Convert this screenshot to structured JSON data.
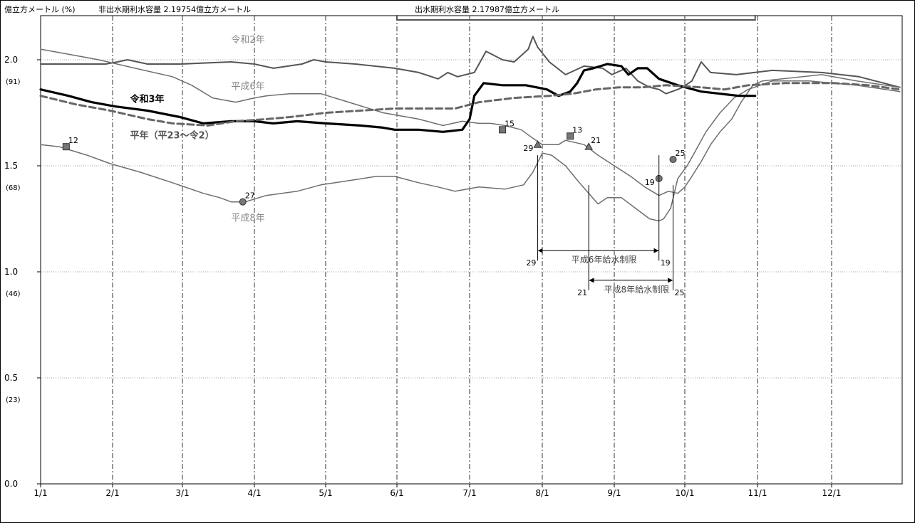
{
  "header": {
    "unit_label": "億立方メートル (%)",
    "non_flood_label": "非出水期利水容量 2.19754億立方メートル",
    "flood_label": "出水期利水容量 2.17987億立方メートル"
  },
  "chart_data": {
    "type": "line",
    "title": "",
    "xlabel": "",
    "ylabel": "億立方メートル (%)",
    "ylim": [
      0,
      2.2
    ],
    "x_ticks": [
      "1/1",
      "2/1",
      "3/1",
      "4/1",
      "5/1",
      "6/1",
      "7/1",
      "8/1",
      "9/1",
      "10/1",
      "11/1",
      "12/1"
    ],
    "y_ticks": [
      {
        "value": 0.0,
        "label": "0.0",
        "pct": ""
      },
      {
        "value": 0.5,
        "label": "0.5",
        "pct": "(23)"
      },
      {
        "value": 1.0,
        "label": "1.0",
        "pct": "(46)"
      },
      {
        "value": 1.5,
        "label": "1.5",
        "pct": "(68)"
      },
      {
        "value": 2.0,
        "label": "2.0",
        "pct": "(91)"
      }
    ],
    "grid": true,
    "series": [
      {
        "name": "令和2年",
        "color": "#555555",
        "width": 2,
        "dash": "",
        "points": [
          [
            0,
            1.98
          ],
          [
            8,
            1.98
          ],
          [
            20,
            1.98
          ],
          [
            28,
            1.98
          ],
          [
            33,
            1.99
          ],
          [
            37,
            2.0
          ],
          [
            45,
            1.98
          ],
          [
            58,
            1.98
          ],
          [
            80,
            1.99
          ],
          [
            90,
            1.98
          ],
          [
            98,
            1.96
          ],
          [
            110,
            1.98
          ],
          [
            115,
            2.0
          ],
          [
            120,
            1.99
          ],
          [
            133,
            1.98
          ],
          [
            150,
            1.96
          ],
          [
            160,
            1.94
          ],
          [
            168,
            1.91
          ],
          [
            172,
            1.94
          ],
          [
            176,
            1.92
          ],
          [
            183,
            1.94
          ],
          [
            186,
            2.0
          ],
          [
            188,
            2.04
          ],
          [
            195,
            2.0
          ],
          [
            200,
            1.99
          ],
          [
            206,
            2.05
          ],
          [
            208,
            2.11
          ],
          [
            210,
            2.06
          ],
          [
            215,
            1.99
          ],
          [
            222,
            1.93
          ],
          [
            230,
            1.97
          ],
          [
            238,
            1.96
          ],
          [
            242,
            1.93
          ],
          [
            248,
            1.96
          ],
          [
            253,
            1.9
          ],
          [
            258,
            1.87
          ],
          [
            262,
            1.86
          ],
          [
            265,
            1.84
          ],
          [
            270,
            1.86
          ],
          [
            272,
            1.87
          ],
          [
            276,
            1.9
          ],
          [
            280,
            1.99
          ],
          [
            284,
            1.94
          ],
          [
            295,
            1.93
          ],
          [
            310,
            1.95
          ],
          [
            330,
            1.94
          ],
          [
            346,
            1.92
          ],
          [
            364,
            1.87
          ]
        ]
      },
      {
        "name": "平成6年",
        "color": "#6e6e6e",
        "width": 1.5,
        "dash": "",
        "points": [
          [
            0,
            2.05
          ],
          [
            15,
            2.02
          ],
          [
            25,
            2.0
          ],
          [
            40,
            1.96
          ],
          [
            55,
            1.92
          ],
          [
            63,
            1.88
          ],
          [
            72,
            1.82
          ],
          [
            82,
            1.8
          ],
          [
            90,
            1.82
          ],
          [
            95,
            1.83
          ],
          [
            105,
            1.84
          ],
          [
            118,
            1.84
          ],
          [
            130,
            1.8
          ],
          [
            145,
            1.75
          ],
          [
            160,
            1.72
          ],
          [
            170,
            1.69
          ],
          [
            178,
            1.71
          ],
          [
            185,
            1.7
          ],
          [
            190,
            1.7
          ],
          [
            196,
            1.69
          ],
          [
            203,
            1.67
          ],
          [
            208,
            1.63
          ],
          [
            212,
            1.6
          ],
          [
            219,
            1.6
          ],
          [
            222,
            1.62
          ],
          [
            230,
            1.6
          ],
          [
            236,
            1.55
          ],
          [
            243,
            1.5
          ],
          [
            250,
            1.45
          ],
          [
            256,
            1.4
          ],
          [
            262,
            1.36
          ],
          [
            266,
            1.38
          ],
          [
            270,
            1.37
          ],
          [
            273,
            1.4
          ],
          [
            276,
            1.45
          ],
          [
            280,
            1.52
          ],
          [
            284,
            1.6
          ],
          [
            288,
            1.66
          ],
          [
            293,
            1.72
          ],
          [
            297,
            1.8
          ],
          [
            302,
            1.88
          ],
          [
            306,
            1.9
          ],
          [
            330,
            1.93
          ],
          [
            345,
            1.9
          ],
          [
            364,
            1.87
          ]
        ]
      },
      {
        "name": "平成8年",
        "color": "#6e6e6e",
        "width": 1.5,
        "dash": "",
        "points": [
          [
            0,
            1.6
          ],
          [
            8,
            1.59
          ],
          [
            20,
            1.55
          ],
          [
            30,
            1.51
          ],
          [
            42,
            1.47
          ],
          [
            55,
            1.42
          ],
          [
            68,
            1.37
          ],
          [
            75,
            1.35
          ],
          [
            80,
            1.33
          ],
          [
            86,
            1.33
          ],
          [
            95,
            1.36
          ],
          [
            108,
            1.38
          ],
          [
            118,
            1.41
          ],
          [
            130,
            1.43
          ],
          [
            142,
            1.45
          ],
          [
            150,
            1.45
          ],
          [
            160,
            1.42
          ],
          [
            168,
            1.4
          ],
          [
            175,
            1.38
          ],
          [
            185,
            1.4
          ],
          [
            196,
            1.39
          ],
          [
            204,
            1.41
          ],
          [
            208,
            1.47
          ],
          [
            212,
            1.56
          ],
          [
            216,
            1.55
          ],
          [
            222,
            1.5
          ],
          [
            228,
            1.42
          ],
          [
            232,
            1.37
          ],
          [
            236,
            1.32
          ],
          [
            240,
            1.35
          ],
          [
            246,
            1.35
          ],
          [
            252,
            1.3
          ],
          [
            258,
            1.25
          ],
          [
            262,
            1.24
          ],
          [
            264,
            1.25
          ],
          [
            267,
            1.3
          ],
          [
            270,
            1.44
          ],
          [
            274,
            1.5
          ],
          [
            278,
            1.58
          ],
          [
            282,
            1.66
          ],
          [
            288,
            1.75
          ],
          [
            294,
            1.82
          ],
          [
            300,
            1.86
          ],
          [
            310,
            1.9
          ],
          [
            325,
            1.9
          ],
          [
            345,
            1.88
          ],
          [
            364,
            1.85
          ]
        ]
      },
      {
        "name": "令和3年",
        "color": "#000000",
        "width": 3.2,
        "dash": "",
        "points": [
          [
            0,
            1.86
          ],
          [
            12,
            1.83
          ],
          [
            22,
            1.8
          ],
          [
            32,
            1.78
          ],
          [
            45,
            1.76
          ],
          [
            58,
            1.73
          ],
          [
            68,
            1.7
          ],
          [
            80,
            1.71
          ],
          [
            90,
            1.71
          ],
          [
            98,
            1.7
          ],
          [
            108,
            1.71
          ],
          [
            120,
            1.7
          ],
          [
            135,
            1.69
          ],
          [
            145,
            1.68
          ],
          [
            150,
            1.67
          ],
          [
            160,
            1.67
          ],
          [
            170,
            1.66
          ],
          [
            178,
            1.67
          ],
          [
            181,
            1.72
          ],
          [
            183,
            1.83
          ],
          [
            187,
            1.89
          ],
          [
            195,
            1.88
          ],
          [
            205,
            1.88
          ],
          [
            214,
            1.86
          ],
          [
            219,
            1.83
          ],
          [
            224,
            1.85
          ],
          [
            227,
            1.89
          ],
          [
            230,
            1.95
          ],
          [
            234,
            1.96
          ],
          [
            240,
            1.98
          ],
          [
            246,
            1.97
          ],
          [
            249,
            1.93
          ],
          [
            253,
            1.96
          ],
          [
            257,
            1.96
          ],
          [
            262,
            1.91
          ],
          [
            270,
            1.88
          ],
          [
            280,
            1.85
          ],
          [
            288,
            1.84
          ],
          [
            296,
            1.83
          ],
          [
            303,
            1.83
          ]
        ]
      },
      {
        "name": "平年（平23～令2）",
        "color": "#666666",
        "width": 3,
        "dash": "9,5",
        "points": [
          [
            0,
            1.83
          ],
          [
            15,
            1.79
          ],
          [
            30,
            1.76
          ],
          [
            45,
            1.72
          ],
          [
            55,
            1.7
          ],
          [
            70,
            1.69
          ],
          [
            82,
            1.71
          ],
          [
            95,
            1.72
          ],
          [
            105,
            1.73
          ],
          [
            120,
            1.75
          ],
          [
            135,
            1.76
          ],
          [
            150,
            1.77
          ],
          [
            165,
            1.77
          ],
          [
            175,
            1.77
          ],
          [
            185,
            1.8
          ],
          [
            200,
            1.82
          ],
          [
            215,
            1.83
          ],
          [
            225,
            1.84
          ],
          [
            235,
            1.86
          ],
          [
            245,
            1.87
          ],
          [
            255,
            1.87
          ],
          [
            265,
            1.88
          ],
          [
            280,
            1.87
          ],
          [
            290,
            1.86
          ],
          [
            300,
            1.88
          ],
          [
            315,
            1.89
          ],
          [
            335,
            1.89
          ],
          [
            350,
            1.88
          ],
          [
            364,
            1.86
          ]
        ]
      }
    ],
    "series_labels": [
      {
        "text": "令和2年",
        "day": 80,
        "value": 2.08,
        "bold": false,
        "color": "#888888"
      },
      {
        "text": "平成6年",
        "day": 80,
        "value": 1.86,
        "bold": false,
        "color": "#888888"
      },
      {
        "text": "令和3年",
        "day": 38,
        "value": 1.8,
        "bold": true,
        "color": "#000000"
      },
      {
        "text": "平年（平23～令2）",
        "day": 38,
        "value": 1.63,
        "bold": true,
        "color": "#555555"
      },
      {
        "text": "平成8年",
        "day": 80,
        "value": 1.24,
        "bold": false,
        "color": "#888888"
      }
    ],
    "markers": [
      {
        "shape": "square",
        "day": 11,
        "value": 1.59,
        "label": "12"
      },
      {
        "shape": "circle",
        "day": 85,
        "value": 1.33,
        "label": "27"
      },
      {
        "shape": "square",
        "day": 195,
        "value": 1.67,
        "label": "15"
      },
      {
        "shape": "triangle",
        "day": 210,
        "value": 1.6,
        "label": "29"
      },
      {
        "shape": "square",
        "day": 224,
        "value": 1.64,
        "label": "13"
      },
      {
        "shape": "triangle",
        "day": 232,
        "value": 1.59,
        "label": "21"
      },
      {
        "shape": "circle",
        "day": 262,
        "value": 1.44,
        "label": "19"
      },
      {
        "shape": "circle",
        "day": 268,
        "value": 1.53,
        "label": "25"
      }
    ],
    "restrictions": [
      {
        "text": "平成6年給水制限",
        "start_day": 210,
        "end_day": 262,
        "value": 1.1,
        "start_label": "29",
        "end_label": "19"
      },
      {
        "text": "平成8年給水制限",
        "start_day": 232,
        "end_day": 268,
        "value": 0.96,
        "start_label": "21",
        "end_label": "25"
      }
    ],
    "flood_period": {
      "start_day": 151,
      "end_day": 303
    }
  }
}
